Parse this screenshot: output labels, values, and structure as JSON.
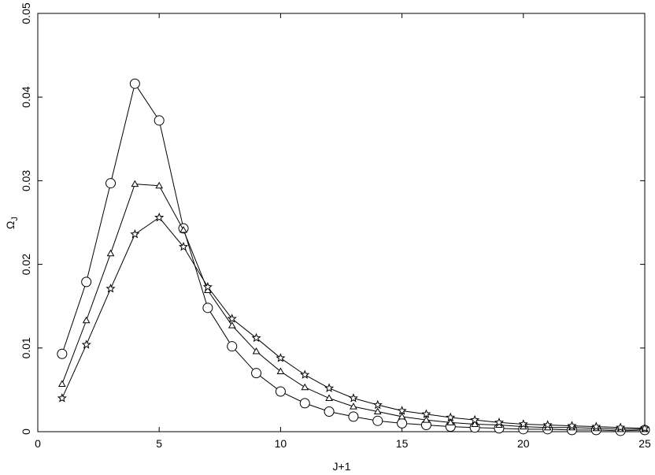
{
  "chart_data": {
    "type": "line",
    "xlabel": "J+1",
    "ylabel": "Ω",
    "ylabel_sub": "J",
    "x": [
      1,
      2,
      3,
      4,
      5,
      6,
      7,
      8,
      9,
      10,
      11,
      12,
      13,
      14,
      15,
      16,
      17,
      18,
      19,
      20,
      21,
      22,
      23,
      24,
      25
    ],
    "series": [
      {
        "color": "#000000",
        "marker": "circle",
        "values": [
          0.0093,
          0.0179,
          0.0297,
          0.0416,
          0.0372,
          0.0243,
          0.0148,
          0.0102,
          0.007,
          0.0048,
          0.0034,
          0.0024,
          0.0018,
          0.0013,
          0.001,
          0.0008,
          0.0006,
          0.0005,
          0.0004,
          0.0003,
          0.0003,
          0.0002,
          0.0002,
          0.0001,
          0.0002
        ]
      },
      {
        "color": "#000000",
        "marker": "triangle",
        "values": [
          0.0057,
          0.0133,
          0.0213,
          0.0296,
          0.0294,
          0.0241,
          0.0169,
          0.0127,
          0.0096,
          0.0072,
          0.0053,
          0.004,
          0.003,
          0.0024,
          0.0018,
          0.0014,
          0.0011,
          0.0009,
          0.0008,
          0.0006,
          0.0005,
          0.0005,
          0.0004,
          0.0003,
          0.0003
        ]
      },
      {
        "color": "#000000",
        "marker": "star",
        "values": [
          0.004,
          0.0104,
          0.0171,
          0.0236,
          0.0256,
          0.0221,
          0.0173,
          0.0135,
          0.0112,
          0.0088,
          0.0068,
          0.0052,
          0.004,
          0.0032,
          0.0025,
          0.0021,
          0.0017,
          0.0014,
          0.0011,
          0.0009,
          0.0008,
          0.0007,
          0.0006,
          0.0005,
          0.0004
        ]
      }
    ],
    "xlim": [
      0,
      25
    ],
    "xticks": [
      0,
      5,
      10,
      15,
      20,
      25
    ],
    "ylim": [
      0,
      0.05
    ],
    "yticks": [
      0,
      0.01,
      0.02,
      0.03,
      0.04,
      0.05
    ],
    "grid": false
  }
}
